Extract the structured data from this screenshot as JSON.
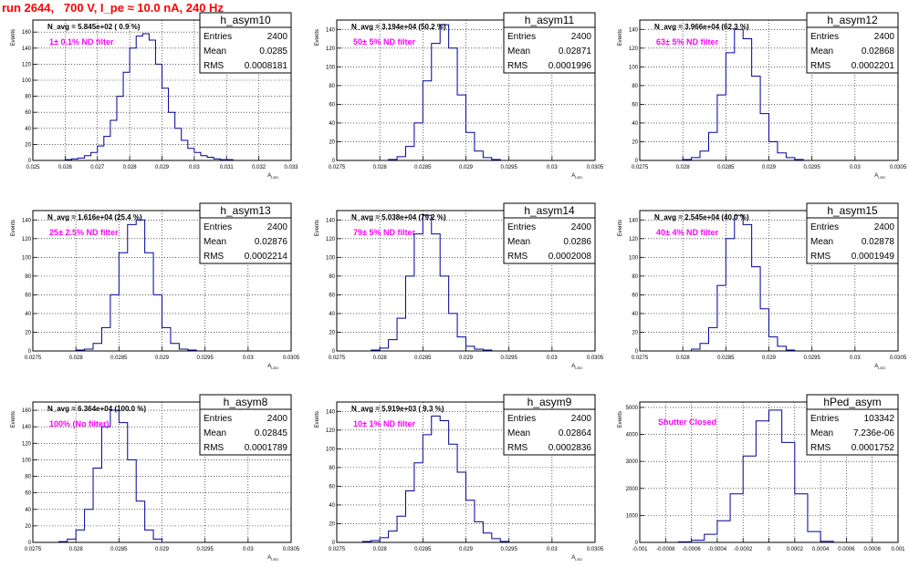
{
  "canvas_title": "run 2644,   700 V, I_pe ≈ 10.0 nA, 240 Hz",
  "colors": {
    "title": "#ff0000",
    "annotation": "#ff00ff",
    "hist_line": "#000099",
    "grid": "#000000"
  },
  "chart_data": [
    {
      "type": "bar",
      "title": "h_asym10",
      "nav_label": "N_avg = 5.845e+02 ( 0.9 %)",
      "annotation": "1± 0.1% ND filter",
      "xlabel": "A_LED",
      "ylabel": "Events",
      "xlim": [
        0.025,
        0.033
      ],
      "ylim": [
        0,
        175
      ],
      "xticks": [
        "0.025",
        "0.026",
        "0.027",
        "0.028",
        "0.029",
        "0.03",
        "0.031",
        "0.032",
        "0.033"
      ],
      "yticks": [
        "0",
        "20",
        "40",
        "60",
        "80",
        "100",
        "120",
        "140",
        "160"
      ],
      "grid": true,
      "stats": {
        "entries_label": "Entries",
        "entries": "2400",
        "mean_label": "Mean",
        "mean": "0.0285",
        "rms_label": "RMS",
        "rms": "0.0008181"
      },
      "x": [
        0.0261,
        0.0263,
        0.0265,
        0.0267,
        0.0269,
        0.0271,
        0.0273,
        0.0275,
        0.0277,
        0.0279,
        0.0281,
        0.0283,
        0.0285,
        0.0287,
        0.0289,
        0.0291,
        0.0293,
        0.0295,
        0.0297,
        0.0299,
        0.0301,
        0.0303,
        0.0305,
        0.0307,
        0.0309,
        0.0311
      ],
      "values": [
        1,
        2,
        3,
        6,
        10,
        18,
        30,
        50,
        80,
        110,
        140,
        155,
        158,
        150,
        120,
        90,
        60,
        40,
        25,
        15,
        10,
        6,
        4,
        2,
        1,
        1
      ]
    },
    {
      "type": "bar",
      "title": "h_asym11",
      "nav_label": "N_avg = 3.194e+04 (50.2 %)",
      "annotation": "50± 5% ND filter",
      "xlabel": "A_LED",
      "ylabel": "Events",
      "xlim": [
        0.0275,
        0.0305
      ],
      "ylim": [
        0,
        150
      ],
      "xticks": [
        "0.0275",
        "0.028",
        "0.0285",
        "0.029",
        "0.0295",
        "0.03",
        "0.0305"
      ],
      "yticks": [
        "0",
        "20",
        "40",
        "60",
        "80",
        "100",
        "120",
        "140"
      ],
      "grid": true,
      "stats": {
        "entries_label": "Entries",
        "entries": "2400",
        "mean_label": "Mean",
        "mean": "0.02871",
        "rms_label": "RMS",
        "rms": "0.0001996"
      },
      "x": [
        0.02815,
        0.02825,
        0.02835,
        0.02845,
        0.02855,
        0.02865,
        0.02875,
        0.02885,
        0.02895,
        0.02905,
        0.02915,
        0.02925,
        0.02935
      ],
      "values": [
        1,
        4,
        15,
        40,
        85,
        125,
        145,
        120,
        70,
        30,
        10,
        3,
        1
      ]
    },
    {
      "type": "bar",
      "title": "h_asym12",
      "nav_label": "N_avg = 3.966e+04 (62.3 %)",
      "annotation": "63± 5% ND filter",
      "xlabel": "A_LED",
      "ylabel": "Events",
      "xlim": [
        0.0275,
        0.0305
      ],
      "ylim": [
        0,
        150
      ],
      "xticks": [
        "0.0275",
        "0.028",
        "0.0285",
        "0.029",
        "0.0295",
        "0.03",
        "0.0305"
      ],
      "yticks": [
        "0",
        "20",
        "40",
        "60",
        "80",
        "100",
        "120",
        "140"
      ],
      "grid": true,
      "stats": {
        "entries_label": "Entries",
        "entries": "2400",
        "mean_label": "Mean",
        "mean": "0.02868",
        "rms_label": "RMS",
        "rms": "0.0002201"
      },
      "x": [
        0.02805,
        0.02815,
        0.02825,
        0.02835,
        0.02845,
        0.02855,
        0.02865,
        0.02875,
        0.02885,
        0.02895,
        0.02905,
        0.02915,
        0.02925,
        0.02935
      ],
      "values": [
        1,
        3,
        10,
        30,
        70,
        115,
        140,
        130,
        90,
        50,
        20,
        8,
        3,
        1
      ]
    },
    {
      "type": "bar",
      "title": "h_asym13",
      "nav_label": "N_avg = 1.616e+04 (25.4 %)",
      "annotation": "25± 2.5% ND filter",
      "xlabel": "A_LED",
      "ylabel": "Events",
      "xlim": [
        0.0275,
        0.0305
      ],
      "ylim": [
        0,
        150
      ],
      "xticks": [
        "0.0275",
        "0.028",
        "0.0285",
        "0.029",
        "0.0295",
        "0.03",
        "0.0305"
      ],
      "yticks": [
        "0",
        "20",
        "40",
        "60",
        "80",
        "100",
        "120",
        "140"
      ],
      "grid": true,
      "stats": {
        "entries_label": "Entries",
        "entries": "2400",
        "mean_label": "Mean",
        "mean": "0.02876",
        "rms_label": "RMS",
        "rms": "0.0002214"
      },
      "x": [
        0.02805,
        0.02815,
        0.02825,
        0.02835,
        0.02845,
        0.02855,
        0.02865,
        0.02875,
        0.02885,
        0.02895,
        0.02905,
        0.02915,
        0.02925,
        0.02935
      ],
      "values": [
        1,
        2,
        8,
        25,
        60,
        105,
        135,
        140,
        105,
        60,
        25,
        8,
        2,
        1
      ]
    },
    {
      "type": "bar",
      "title": "h_asym14",
      "nav_label": "N_avg = 5.038e+04 (79.2 %)",
      "annotation": "79± 5% ND filter",
      "xlabel": "A_LED",
      "ylabel": "Events",
      "xlim": [
        0.0275,
        0.0305
      ],
      "ylim": [
        0,
        150
      ],
      "xticks": [
        "0.0275",
        "0.028",
        "0.0285",
        "0.029",
        "0.0295",
        "0.03",
        "0.0305"
      ],
      "yticks": [
        "0",
        "20",
        "40",
        "60",
        "80",
        "100",
        "120",
        "140"
      ],
      "grid": true,
      "stats": {
        "entries_label": "Entries",
        "entries": "2400",
        "mean_label": "Mean",
        "mean": "0.0286",
        "rms_label": "RMS",
        "rms": "0.0002008"
      },
      "x": [
        0.02795,
        0.02805,
        0.02815,
        0.02825,
        0.02835,
        0.02845,
        0.02855,
        0.02865,
        0.02875,
        0.02885,
        0.02895,
        0.02905,
        0.02915,
        0.02925
      ],
      "values": [
        1,
        3,
        12,
        35,
        80,
        125,
        145,
        125,
        80,
        40,
        15,
        5,
        2,
        1
      ]
    },
    {
      "type": "bar",
      "title": "h_asym15",
      "nav_label": "N_avg = 2.545e+04 (40.0 %)",
      "annotation": "40± 4% ND filter",
      "xlabel": "A_LED",
      "ylabel": "Events",
      "xlim": [
        0.0275,
        0.0305
      ],
      "ylim": [
        0,
        150
      ],
      "xticks": [
        "0.0275",
        "0.028",
        "0.0285",
        "0.029",
        "0.0295",
        "0.03",
        "0.0305"
      ],
      "yticks": [
        "0",
        "20",
        "40",
        "60",
        "80",
        "100",
        "120",
        "140"
      ],
      "grid": true,
      "stats": {
        "entries_label": "Entries",
        "entries": "2400",
        "mean_label": "Mean",
        "mean": "0.02878",
        "rms_label": "RMS",
        "rms": "0.0001949"
      },
      "x": [
        0.02815,
        0.02825,
        0.02835,
        0.02845,
        0.02855,
        0.02865,
        0.02875,
        0.02885,
        0.02895,
        0.02905,
        0.02915,
        0.02925
      ],
      "values": [
        2,
        8,
        25,
        70,
        120,
        145,
        135,
        90,
        45,
        15,
        5,
        1
      ]
    },
    {
      "type": "bar",
      "title": "h_asym8",
      "nav_label": "N_avg = 6.364e+04 (100.0 %)",
      "annotation": "100% (No filter)",
      "xlabel": "A_LED",
      "ylabel": "Events",
      "xlim": [
        0.0275,
        0.0305
      ],
      "ylim": [
        0,
        170
      ],
      "xticks": [
        "0.0275",
        "0.028",
        "0.0285",
        "0.029",
        "0.0295",
        "0.03",
        "0.0305"
      ],
      "yticks": [
        "0",
        "20",
        "40",
        "60",
        "80",
        "100",
        "120",
        "140",
        "160"
      ],
      "grid": true,
      "stats": {
        "entries_label": "Entries",
        "entries": "2400",
        "mean_label": "Mean",
        "mean": "0.02845",
        "rms_label": "RMS",
        "rms": "0.0001789"
      },
      "x": [
        0.02785,
        0.02795,
        0.02805,
        0.02815,
        0.02825,
        0.02835,
        0.02845,
        0.02855,
        0.02865,
        0.02875,
        0.02885,
        0.02895
      ],
      "values": [
        1,
        4,
        15,
        40,
        90,
        140,
        160,
        145,
        100,
        50,
        15,
        4
      ]
    },
    {
      "type": "bar",
      "title": "h_asym9",
      "nav_label": "N_avg = 5.919e+03 ( 9.3 %)",
      "annotation": "10± 1% ND filter",
      "xlabel": "A_LED",
      "ylabel": "Events",
      "xlim": [
        0.0275,
        0.0305
      ],
      "ylim": [
        0,
        150
      ],
      "xticks": [
        "0.0275",
        "0.028",
        "0.0285",
        "0.029",
        "0.0295",
        "0.03",
        "0.0305"
      ],
      "yticks": [
        "0",
        "20",
        "40",
        "60",
        "80",
        "100",
        "120",
        "140"
      ],
      "grid": true,
      "stats": {
        "entries_label": "Entries",
        "entries": "2400",
        "mean_label": "Mean",
        "mean": "0.02864",
        "rms_label": "RMS",
        "rms": "0.0002836"
      },
      "x": [
        0.02785,
        0.02795,
        0.02805,
        0.02815,
        0.02825,
        0.02835,
        0.02845,
        0.02855,
        0.02865,
        0.02875,
        0.02885,
        0.02895,
        0.02905,
        0.02915,
        0.02925,
        0.02935,
        0.02945
      ],
      "values": [
        1,
        2,
        5,
        12,
        28,
        55,
        85,
        115,
        135,
        130,
        105,
        75,
        45,
        22,
        10,
        4,
        1
      ]
    },
    {
      "type": "bar",
      "title": "hPed_asym",
      "nav_label": "",
      "annotation": "Shutter Closed",
      "xlabel": "",
      "ylabel": "Events",
      "xlim": [
        -0.001,
        0.001
      ],
      "ylim": [
        0,
        5200
      ],
      "xticks": [
        "-0.001",
        "-0.0008",
        "-0.0006",
        "-0.0004",
        "-0.0002",
        "0",
        "0.0002",
        "0.0004",
        "0.0006",
        "0.0008",
        "0.001"
      ],
      "yticks": [
        "0",
        "1000",
        "2000",
        "3000",
        "4000",
        "5000"
      ],
      "grid": true,
      "stats": {
        "entries_label": "Entries",
        "entries": "103342",
        "mean_label": "Mean",
        "mean": "7.236e-06",
        "rms_label": "RMS",
        "rms": "0.0001752"
      },
      "x": [
        -0.00065,
        -0.00055,
        -0.00045,
        -0.00035,
        -0.00025,
        -0.00015,
        -5e-05,
        5e-05,
        0.00015,
        0.00025,
        0.00035,
        0.00045
      ],
      "values": [
        20,
        80,
        300,
        800,
        1800,
        3200,
        4500,
        4900,
        3700,
        1800,
        400,
        40
      ]
    }
  ]
}
